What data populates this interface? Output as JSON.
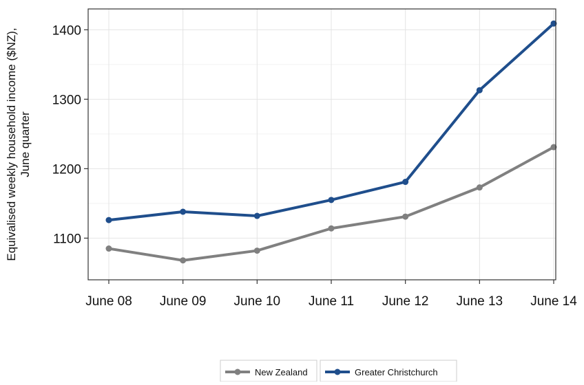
{
  "chart_data": {
    "type": "line",
    "title": "",
    "xlabel": "",
    "ylabel": "Equivalised weekly household income ($NZ), June quarter",
    "ylabel_lines": [
      "Equivalised weekly household income ($NZ),",
      "June quarter"
    ],
    "categories": [
      "June 08",
      "June 09",
      "June 10",
      "June 11",
      "June 12",
      "June 13",
      "June 14"
    ],
    "yticks": [
      1100,
      1200,
      1300,
      1400
    ],
    "ylim": [
      1040,
      1430
    ],
    "grid": true,
    "legend_position": "bottom",
    "series": [
      {
        "name": "New Zealand",
        "color": "#808080",
        "values": [
          1085,
          1068,
          1082,
          1114,
          1131,
          1173,
          1231
        ]
      },
      {
        "name": "Greater Christchurch",
        "color": "#1f4e8c",
        "values": [
          1126,
          1138,
          1132,
          1155,
          1181,
          1313,
          1409
        ]
      }
    ]
  }
}
